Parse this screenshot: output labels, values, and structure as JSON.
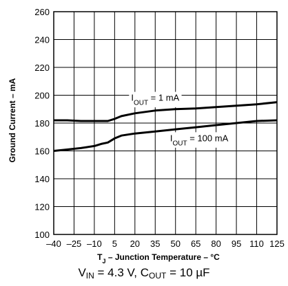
{
  "chart_data": {
    "type": "line",
    "xlabel_main": "T",
    "xlabel_sub": "J",
    "xlabel_rest": " – Junction Temperature – °C",
    "ylabel": "Ground Current – mA",
    "xlim": [
      -40,
      125
    ],
    "ylim": [
      100,
      260
    ],
    "x_ticks": [
      -40,
      -25,
      -10,
      5,
      20,
      35,
      50,
      65,
      80,
      95,
      110,
      125
    ],
    "x_tick_labels": [
      "–40",
      "–25",
      "–10",
      "5",
      "20",
      "35",
      "50",
      "65",
      "80",
      "95",
      "110",
      "125"
    ],
    "y_ticks": [
      100,
      120,
      140,
      160,
      180,
      200,
      220,
      240,
      260
    ],
    "y_tick_labels": [
      "100",
      "120",
      "140",
      "160",
      "180",
      "200",
      "220",
      "240",
      "260"
    ],
    "grid": true,
    "series": [
      {
        "name_main": "I",
        "name_sub": "OUT",
        "name_rest": " = 1 mA",
        "x": [
          -40,
          -30,
          -20,
          -10,
          0,
          5,
          10,
          20,
          35,
          50,
          65,
          80,
          95,
          110,
          125
        ],
        "y": [
          182,
          182,
          181.5,
          181.5,
          181.5,
          183,
          185,
          187,
          189,
          190,
          190.5,
          191.5,
          192.5,
          193.5,
          195
        ]
      },
      {
        "name_main": "I",
        "name_sub": "OUT",
        "name_rest": " = 100 mA",
        "x": [
          -40,
          -30,
          -20,
          -10,
          -5,
          0,
          5,
          10,
          20,
          35,
          50,
          65,
          80,
          95,
          110,
          125
        ],
        "y": [
          160,
          161,
          162,
          163.5,
          165,
          166,
          169,
          171,
          172.5,
          174,
          175.5,
          177,
          178.5,
          180,
          181.5,
          182
        ]
      }
    ]
  },
  "caption": {
    "vin_main": "V",
    "vin_sub": "IN",
    "vin_rest": " = 4.3 V, C",
    "cout_sub": "OUT",
    "cout_rest": " = 10 µF"
  }
}
